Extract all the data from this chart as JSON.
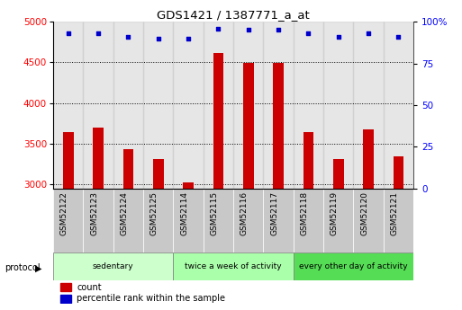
{
  "title": "GDS1421 / 1387771_a_at",
  "samples": [
    "GSM52122",
    "GSM52123",
    "GSM52124",
    "GSM52125",
    "GSM52114",
    "GSM52115",
    "GSM52116",
    "GSM52117",
    "GSM52118",
    "GSM52119",
    "GSM52120",
    "GSM52121"
  ],
  "counts": [
    3640,
    3700,
    3430,
    3310,
    3020,
    4620,
    4490,
    4490,
    3640,
    3310,
    3680,
    3340
  ],
  "percentile_ranks": [
    93,
    93,
    91,
    90,
    90,
    96,
    95,
    95,
    93,
    91,
    93,
    91
  ],
  "ylim_left": [
    2950,
    5000
  ],
  "ylim_right": [
    0,
    100
  ],
  "yticks_left": [
    3000,
    3500,
    4000,
    4500,
    5000
  ],
  "yticks_right": [
    0,
    25,
    50,
    75,
    100
  ],
  "bar_color": "#cc0000",
  "dot_color": "#0000cc",
  "grid_color": "#000000",
  "protocol_groups": [
    {
      "label": "sedentary",
      "start": 0,
      "end": 4,
      "color": "#ccffcc"
    },
    {
      "label": "twice a week of activity",
      "start": 4,
      "end": 8,
      "color": "#aaffaa"
    },
    {
      "label": "every other day of activity",
      "start": 8,
      "end": 12,
      "color": "#55dd55"
    }
  ],
  "protocol_label": "protocol",
  "legend_count_label": "count",
  "legend_pct_label": "percentile rank within the sample",
  "bar_width": 0.35,
  "label_color": "#888888",
  "bg_gray": "#c8c8c8"
}
